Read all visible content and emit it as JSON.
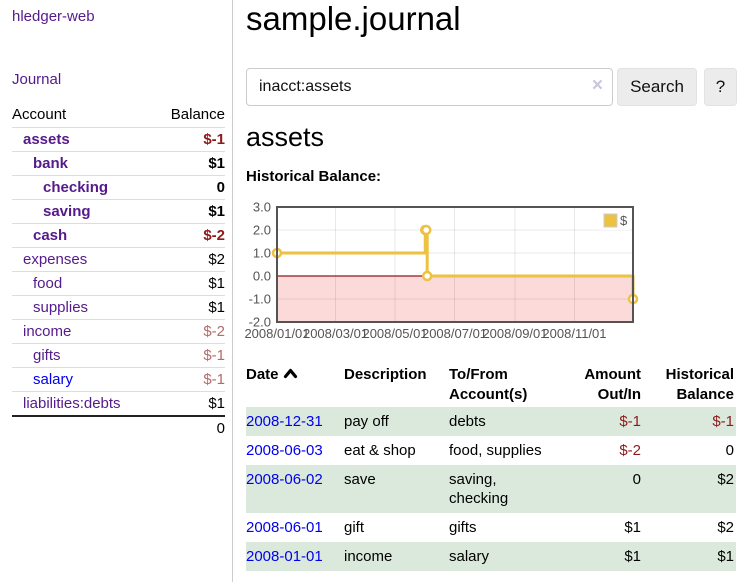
{
  "sidebar": {
    "app_title": "hledger-web",
    "journal_link": "Journal",
    "accounts_header": {
      "account": "Account",
      "balance": "Balance"
    },
    "accounts": [
      {
        "name": "assets",
        "depth": 1,
        "bold": true,
        "balance": "$-1"
      },
      {
        "name": "bank",
        "depth": 2,
        "bold": true,
        "balance": "$1"
      },
      {
        "name": "checking",
        "depth": 3,
        "bold": true,
        "balance": "0"
      },
      {
        "name": "saving",
        "depth": 3,
        "bold": true,
        "balance": "$1"
      },
      {
        "name": "cash",
        "depth": 2,
        "bold": true,
        "balance": "$-2"
      },
      {
        "name": "expenses",
        "depth": 1,
        "bold": false,
        "balance": "$2"
      },
      {
        "name": "food",
        "depth": 2,
        "bold": false,
        "balance": "$1"
      },
      {
        "name": "supplies",
        "depth": 2,
        "bold": false,
        "balance": "$1"
      },
      {
        "name": "income",
        "depth": 1,
        "bold": false,
        "balance": "$-2"
      },
      {
        "name": "gifts",
        "depth": 2,
        "bold": false,
        "balance": "$-1"
      },
      {
        "name": "salary",
        "depth": 2,
        "bold": false,
        "balance": "$-1",
        "fresh_link": true
      },
      {
        "name": "liabilities:debts",
        "depth": 1,
        "bold": false,
        "balance": "$1"
      }
    ],
    "total": "0"
  },
  "main": {
    "title": "sample.journal",
    "search": {
      "value": "inacct:assets",
      "clear_icon": "×",
      "button_label": "Search",
      "help_label": "?"
    },
    "account_heading": "assets"
  },
  "chart_data": {
    "type": "line",
    "step": true,
    "title": "Historical Balance:",
    "x_range": [
      "2008-01-01",
      "2008-12-31"
    ],
    "ylim": [
      -2,
      3
    ],
    "y_ticks": [
      "3.0",
      "2.0",
      "1.0",
      "0.0",
      "-1.0",
      "-2.0"
    ],
    "x_ticks": [
      "2008/01/01",
      "2008/03/01",
      "2008/05/01",
      "2008/07/01",
      "2008/09/01",
      "2008/11/01"
    ],
    "series": [
      {
        "name": "$",
        "color": "#edc240",
        "points": [
          [
            "2008-01-01",
            1
          ],
          [
            "2008-06-01",
            2
          ],
          [
            "2008-06-02",
            2
          ],
          [
            "2008-06-03",
            0
          ],
          [
            "2008-12-31",
            -1
          ]
        ]
      }
    ],
    "legend": {
      "label": "$",
      "position": "top-right"
    },
    "colors": {
      "negative_region": "#fcdada",
      "zero_line": "#8b1a1a",
      "grid": "rgba(0,0,0,0.09)",
      "border": "#545454",
      "tick_text": "#545454"
    }
  },
  "register": {
    "headers": {
      "date": "Date",
      "description": "Description",
      "accounts": "To/From Account(s)",
      "amount": "Amount Out/In",
      "balance": "Historical Balance"
    },
    "rows": [
      {
        "date": "2008-12-31",
        "description": "pay off",
        "accounts": "debts",
        "amount": "$-1",
        "balance": "$-1"
      },
      {
        "date": "2008-06-03",
        "description": "eat & shop",
        "accounts": "food, supplies",
        "amount": "$-2",
        "balance": "0"
      },
      {
        "date": "2008-06-02",
        "description": "save",
        "accounts": "saving, checking",
        "amount": "0",
        "balance": "$2"
      },
      {
        "date": "2008-06-01",
        "description": "gift",
        "accounts": "gifts",
        "amount": "$1",
        "balance": "$2"
      },
      {
        "date": "2008-01-01",
        "description": "income",
        "accounts": "salary",
        "amount": "$1",
        "balance": "$1"
      }
    ]
  }
}
